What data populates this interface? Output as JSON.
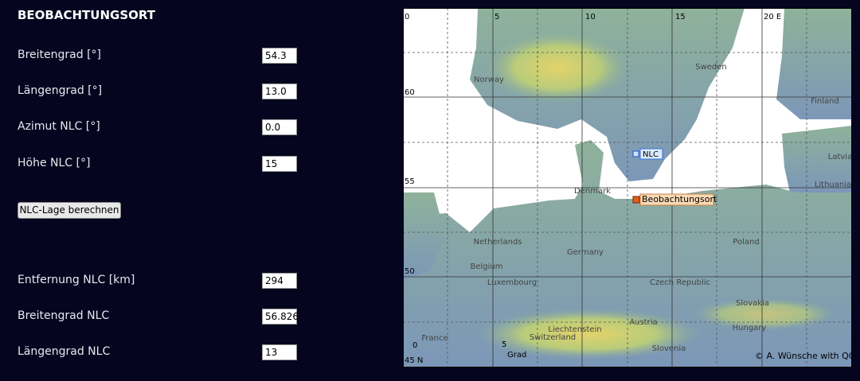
{
  "form": {
    "title": "BEOBACHTUNGSORT",
    "inputs": [
      {
        "label": "Breitengrad [°]",
        "value": "54.3"
      },
      {
        "label": "Längengrad [°]",
        "value": "13.0"
      },
      {
        "label": "Azimut NLC [°]",
        "value": "0.0"
      },
      {
        "label": "Höhe NLC [°]",
        "value": "15"
      }
    ],
    "button": "NLC-Lage berechnen",
    "results": [
      {
        "label": "Entfernung NLC [km]",
        "value": "294"
      },
      {
        "label": "Breitengrad NLC",
        "value": "56.826"
      },
      {
        "label": "Längengrad NLC",
        "value": "13"
      }
    ]
  },
  "map": {
    "lon_labels": [
      "0",
      "5",
      "10",
      "15",
      "20 E"
    ],
    "lat_labels": [
      "60",
      "55",
      "50",
      "45 N"
    ],
    "bottom_labels": [
      "0",
      "5",
      "Grad"
    ],
    "countries": [
      "Norway",
      "Sweden",
      "Finland",
      "Latvia",
      "Lithuania",
      "Denmark",
      "Netherlands",
      "Belgium",
      "Germany",
      "Poland",
      "Luxembourg",
      "Czech Republic",
      "Slovakia",
      "Liechtenstein",
      "Austria",
      "Hungary",
      "France",
      "Switzerland",
      "Slovenia"
    ],
    "markers": {
      "nlc": "NLC",
      "observer": "Beobachtungsort"
    },
    "copyright": "© A. Wünsche with QG"
  }
}
